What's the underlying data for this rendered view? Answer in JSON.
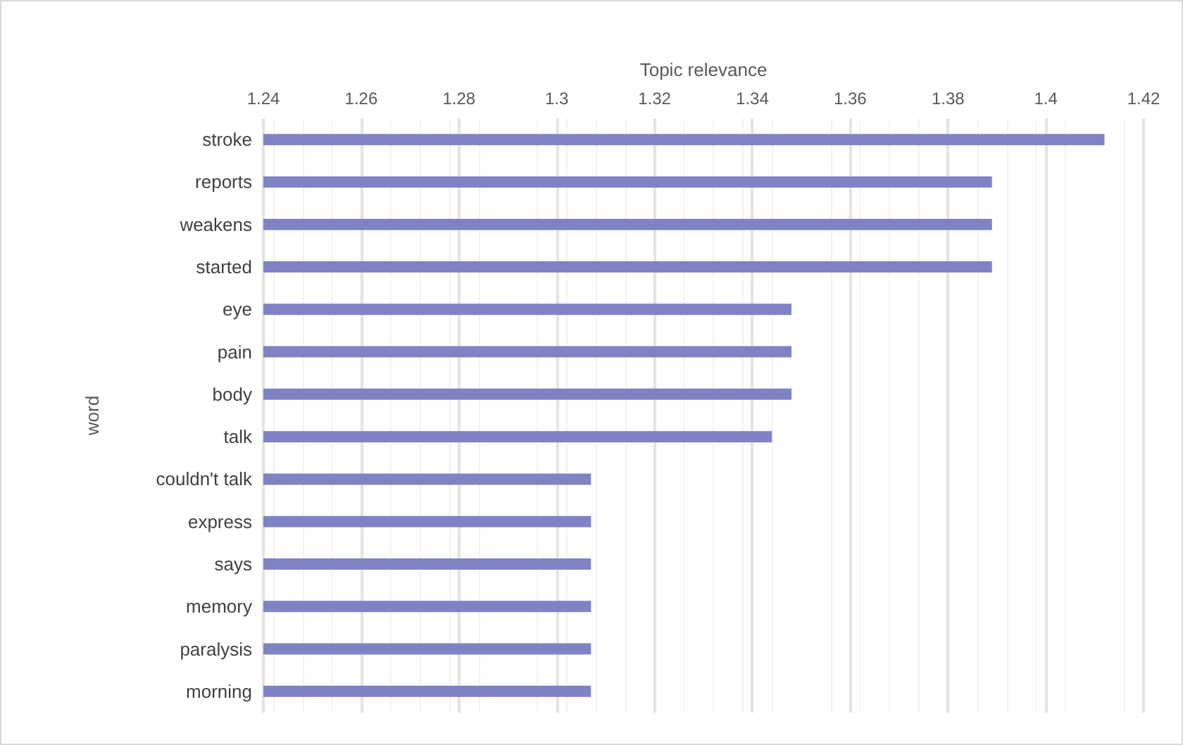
{
  "chart_data": {
    "type": "bar",
    "orientation": "horizontal",
    "xlabel": "Topic relevance",
    "ylabel": "word",
    "categories": [
      "stroke",
      "reports",
      "weakens",
      "started",
      "eye",
      "pain",
      "body",
      "talk",
      "couldn't talk",
      "express",
      "says",
      "memory",
      "paralysis",
      "morning"
    ],
    "values": [
      1.412,
      1.389,
      1.389,
      1.389,
      1.348,
      1.348,
      1.348,
      1.344,
      1.307,
      1.307,
      1.307,
      1.307,
      1.307,
      1.307
    ],
    "color": "#7f83c4",
    "xlim": [
      1.24,
      1.42
    ],
    "xticks": [
      1.24,
      1.26,
      1.28,
      1.3,
      1.32,
      1.34,
      1.36,
      1.38,
      1.4,
      1.42
    ],
    "grid": "x"
  }
}
